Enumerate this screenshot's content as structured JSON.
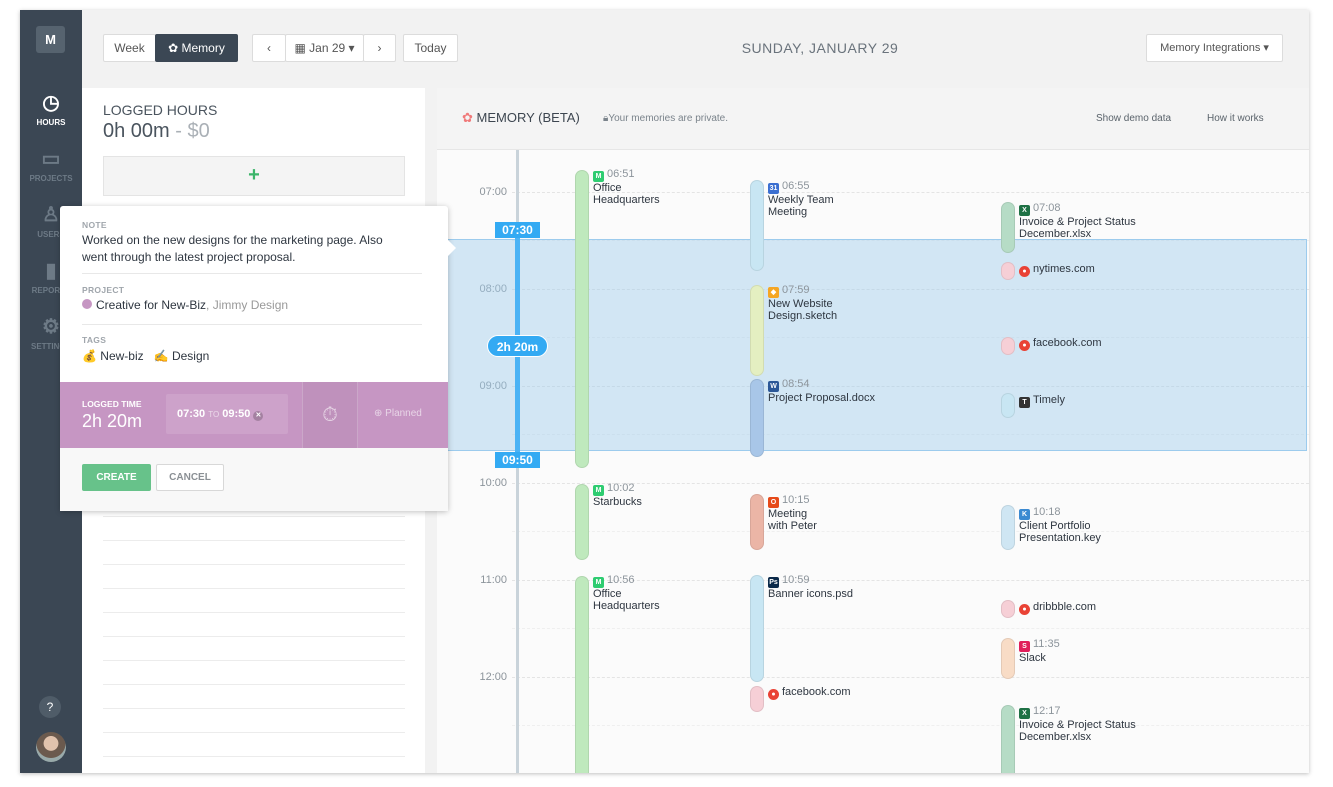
{
  "sidebar": {
    "logo": "M",
    "items": [
      {
        "label": "HOURS",
        "icon": "clock-icon"
      },
      {
        "label": "PROJECTS",
        "icon": "briefcase-icon"
      },
      {
        "label": "USERS",
        "icon": "user-icon"
      },
      {
        "label": "REPORTS",
        "icon": "bar-chart-icon"
      },
      {
        "label": "SETTINGS",
        "icon": "gear-icon"
      }
    ],
    "help": "?"
  },
  "toolbar": {
    "week": "Week",
    "memory": "Memory",
    "date": "Jan 29",
    "today": "Today",
    "day_title": "SUNDAY, JANUARY 29",
    "integrations": "Memory Integrations"
  },
  "logged": {
    "title": "LOGGED HOURS",
    "hours": "0h 00m",
    "sep": " - ",
    "money": "$0",
    "add": "+"
  },
  "popup": {
    "note_label": "NOTE",
    "note": "Worked on the new designs for the marketing page. Also went through the latest project proposal.",
    "project_label": "PROJECT",
    "project": "Creative for New-Biz",
    "client": ", Jimmy Design",
    "project_color": "#c696c3",
    "tags_label": "TAGS",
    "tags": [
      {
        "icon": "💰",
        "label": "New-biz"
      },
      {
        "icon": "✍",
        "label": "Design"
      }
    ],
    "logged_label": "LOGGED TIME",
    "logged": "2h 20m",
    "from": "07:30",
    "to_label": "TO",
    "to": "09:50",
    "planned": "Planned",
    "create": "CREATE",
    "cancel": "CANCEL"
  },
  "memory": {
    "title": "MEMORY (BETA)",
    "private": "Your memories are private.",
    "demo": "Show demo data",
    "how": "How it works",
    "hours": [
      "07:00",
      "08:00",
      "09:00",
      "10:00",
      "11:00",
      "12:00"
    ],
    "selection": {
      "start": "07:30",
      "end": "09:50",
      "duration": "2h 20m"
    },
    "events": [
      {
        "time": "06:51",
        "title": "Office",
        "title2": "Headquarters",
        "icon": "moves-icon"
      },
      {
        "time": "10:02",
        "title": "Starbucks",
        "icon": "moves-icon"
      },
      {
        "time": "10:56",
        "title": "Office",
        "title2": "Headquarters",
        "icon": "moves-icon"
      },
      {
        "time": "06:55",
        "title": "Weekly Team",
        "title2": "Meeting",
        "icon": "calendar-icon"
      },
      {
        "time": "07:59",
        "title": "New Website",
        "title2": "Design.sketch",
        "icon": "sketch-icon"
      },
      {
        "time": "08:54",
        "title": "Project Proposal.docx",
        "icon": "word-icon"
      },
      {
        "time": "10:15",
        "title": "Meeting",
        "title2": "with Peter",
        "icon": "office-icon"
      },
      {
        "time": "10:59",
        "title": "Banner icons.psd",
        "icon": "photoshop-icon"
      },
      {
        "title": "facebook.com",
        "icon": "chrome-icon"
      },
      {
        "time": "07:08",
        "title": "Invoice & Project Status",
        "title2": "December.xlsx",
        "icon": "excel-icon"
      },
      {
        "title": "nytimes.com",
        "icon": "chrome-icon"
      },
      {
        "title": "facebook.com",
        "icon": "chrome-icon"
      },
      {
        "title": "Timely",
        "icon": "timely-icon"
      },
      {
        "time": "10:18",
        "title": "Client Portfolio",
        "title2": "Presentation.key",
        "icon": "keynote-icon"
      },
      {
        "title": "dribbble.com",
        "icon": "chrome-icon"
      },
      {
        "time": "11:35",
        "title": "Slack",
        "icon": "slack-icon"
      },
      {
        "time": "12:17",
        "title": "Invoice & Project Status",
        "title2": "December.xlsx",
        "icon": "excel-icon"
      }
    ]
  }
}
